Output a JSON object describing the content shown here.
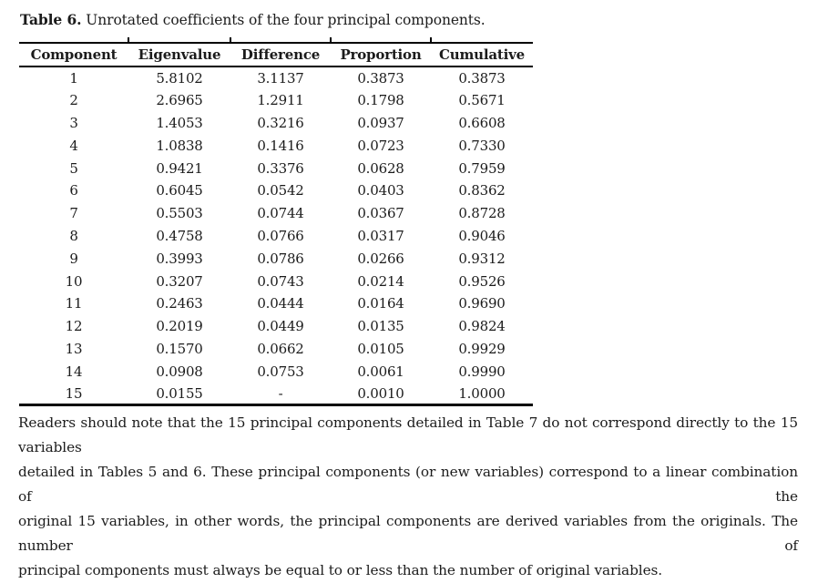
{
  "caption": {
    "label": "Table 6.",
    "rest": " Unrotated coefficients of the four principal components."
  },
  "table": {
    "columns": [
      "Component",
      "Eigenvalue",
      "Difference",
      "Proportion",
      "Cumulative"
    ],
    "rows": [
      [
        "1",
        "5.8102",
        "3.1137",
        "0.3873",
        "0.3873"
      ],
      [
        "2",
        "2.6965",
        "1.2911",
        "0.1798",
        "0.5671"
      ],
      [
        "3",
        "1.4053",
        "0.3216",
        "0.0937",
        "0.6608"
      ],
      [
        "4",
        "1.0838",
        "0.1416",
        "0.0723",
        "0.7330"
      ],
      [
        "5",
        "0.9421",
        "0.3376",
        "0.0628",
        "0.7959"
      ],
      [
        "6",
        "0.6045",
        "0.0542",
        "0.0403",
        "0.8362"
      ],
      [
        "7",
        "0.5503",
        "0.0744",
        "0.0367",
        "0.8728"
      ],
      [
        "8",
        "0.4758",
        "0.0766",
        "0.0317",
        "0.9046"
      ],
      [
        "9",
        "0.3993",
        "0.0786",
        "0.0266",
        "0.9312"
      ],
      [
        "10",
        "0.3207",
        "0.0743",
        "0.0214",
        "0.9526"
      ],
      [
        "11",
        "0.2463",
        "0.0444",
        "0.0164",
        "0.9690"
      ],
      [
        "12",
        "0.2019",
        "0.0449",
        "0.0135",
        "0.9824"
      ],
      [
        "13",
        "0.1570",
        "0.0662",
        "0.0105",
        "0.9929"
      ],
      [
        "14",
        "0.0908",
        "0.0753",
        "0.0061",
        "0.9990"
      ],
      [
        "15",
        "0.0155",
        "-",
        "0.0010",
        "1.0000"
      ]
    ]
  },
  "note": {
    "lines": [
      "Readers should note that the 15 principal components detailed in Table 7 do not correspond directly to the 15 variables",
      "detailed in Tables 5 and 6. These principal components (or new variables) correspond to a linear combination of the",
      "original 15 variables, in other words, the principal components are derived variables from the originals. The number of",
      "principal components must always be equal to or less than the number of original variables."
    ]
  },
  "colors": {
    "text": "#1b1b1b",
    "rule": "#000000",
    "background": "#ffffff"
  }
}
